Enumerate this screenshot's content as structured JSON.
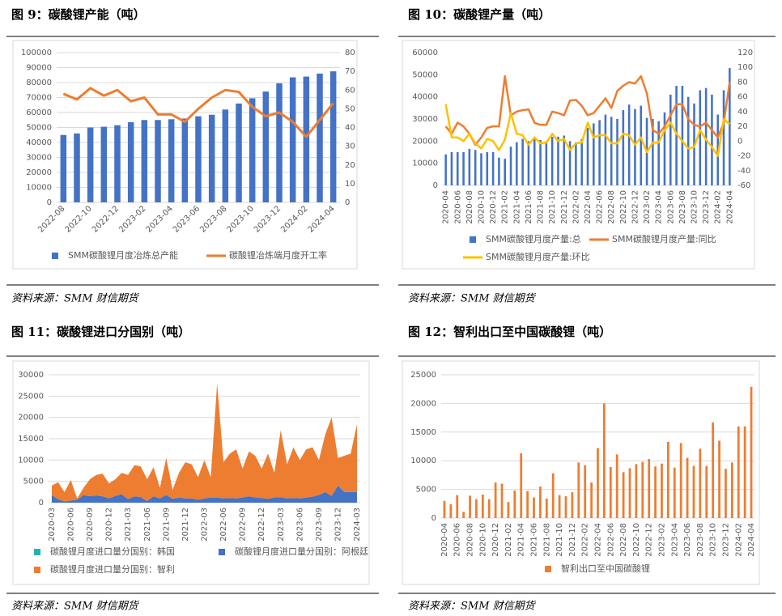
{
  "chart_data": [
    {
      "type": "combo",
      "title": "图 9：碳酸锂产能（吨）",
      "source": "资料来源：SMM  财信期货",
      "categories": [
        "2022-08",
        null,
        "2022-10",
        null,
        "2022-12",
        null,
        "2023-02",
        null,
        "2023-04",
        null,
        "2023-06",
        null,
        "2023-08",
        null,
        "2023-10",
        null,
        "2023-12",
        null,
        "2024-02",
        null,
        "2024-04"
      ],
      "series": [
        {
          "name": "SMM碳酸锂月度冶炼总产能",
          "type": "bar",
          "color": "#4472c4",
          "values": [
            45000,
            46000,
            50000,
            50500,
            51500,
            53500,
            55000,
            55000,
            55500,
            56000,
            57500,
            58500,
            62000,
            66000,
            69500,
            74000,
            79500,
            83500,
            84000,
            86000,
            87500
          ]
        },
        {
          "name": "碳酸锂冶炼端月度开工率",
          "type": "line",
          "axis": "y2",
          "color": "#ed7d31",
          "values": [
            58,
            55,
            61,
            57,
            60,
            54,
            56,
            47,
            47,
            43,
            50,
            56,
            60,
            59,
            51,
            46,
            48,
            43,
            35,
            44,
            53
          ]
        }
      ],
      "ylim": [
        0,
        100000
      ],
      "yticks": [
        0,
        10000,
        20000,
        30000,
        40000,
        50000,
        60000,
        70000,
        80000,
        90000,
        100000
      ],
      "y2lim": [
        0,
        80
      ],
      "y2ticks": [
        0,
        10,
        20,
        30,
        40,
        50,
        60,
        70,
        80
      ],
      "grid": true,
      "legend": "bottom"
    },
    {
      "type": "combo",
      "title": "图 10：碳酸锂产量（吨）",
      "source": "资料来源：SMM  财信期货",
      "categories": [
        "2020-04",
        null,
        "2020-06",
        null,
        "2020-08",
        null,
        "2020-10",
        null,
        "2020-12",
        null,
        "2021-02",
        null,
        "2021-04",
        null,
        "2021-06",
        null,
        "2021-08",
        null,
        "2021-10",
        null,
        "2021-12",
        null,
        "2022-02",
        null,
        "2022-04",
        null,
        "2022-06",
        null,
        "2022-08",
        null,
        "2022-10",
        null,
        "2022-12",
        null,
        "2023-02",
        null,
        "2023-04",
        null,
        "2023-06",
        null,
        "2023-08",
        null,
        "2023-10",
        null,
        "2023-12",
        null,
        "2024-02",
        null,
        "2024-04"
      ],
      "series": [
        {
          "name": "SMM碳酸锂月度产量:总",
          "type": "bar",
          "color": "#4472c4",
          "values": [
            14000,
            15000,
            15000,
            15000,
            16500,
            16000,
            14500,
            15000,
            15000,
            12500,
            12000,
            17500,
            19500,
            21000,
            20000,
            21000,
            20500,
            20000,
            22000,
            22000,
            22500,
            20000,
            19500,
            21000,
            26000,
            28000,
            29500,
            32000,
            31000,
            30000,
            34000,
            36500,
            34500,
            36000,
            30500,
            30000,
            29000,
            33000,
            41000,
            45000,
            45000,
            40000,
            37000,
            43000,
            44000,
            41000,
            32000,
            43000,
            53000
          ]
        },
        {
          "name": "SMM碳酸锂月度产量:同比",
          "type": "line",
          "axis": "y2",
          "color": "#ed7d31",
          "values": [
            20,
            10,
            25,
            20,
            10,
            -5,
            5,
            18,
            20,
            20,
            88,
            35,
            40,
            42,
            43,
            25,
            22,
            22,
            40,
            38,
            35,
            55,
            56,
            48,
            35,
            38,
            48,
            58,
            45,
            68,
            75,
            80,
            78,
            88,
            65,
            15,
            10,
            20,
            35,
            50,
            50,
            30,
            22,
            20,
            25,
            15,
            5,
            25,
            80
          ]
        },
        {
          "name": "SMM碳酸锂月度产量:环比",
          "type": "line",
          "axis": "y2",
          "color": "#ffc000",
          "values": [
            50,
            5,
            5,
            0,
            10,
            -3,
            -10,
            3,
            0,
            -12,
            2,
            38,
            10,
            8,
            -5,
            5,
            -3,
            -2,
            10,
            0,
            3,
            -12,
            -3,
            -2,
            25,
            5,
            8,
            8,
            -3,
            -3,
            10,
            8,
            -5,
            5,
            -15,
            -2,
            -2,
            15,
            25,
            10,
            0,
            -10,
            -8,
            15,
            2,
            -8,
            -20,
            30,
            23
          ]
        }
      ],
      "ylim": [
        0,
        60000
      ],
      "yticks": [
        0,
        10000,
        20000,
        30000,
        40000,
        50000,
        60000
      ],
      "y2lim": [
        -60,
        120
      ],
      "y2ticks": [
        -60,
        -40,
        -20,
        0,
        20,
        40,
        60,
        80,
        100,
        120
      ],
      "grid": false,
      "legend": "bottom"
    },
    {
      "type": "area",
      "stacked": true,
      "title": "图 11：碳酸锂进口分国别（吨）",
      "source": "资料来源：SMM  财信期货",
      "categories": [
        "2020-03",
        null,
        null,
        "2020-06",
        null,
        null,
        "2020-09",
        null,
        null,
        "2020-12",
        null,
        null,
        "2021-03",
        null,
        null,
        "2021-06",
        null,
        null,
        "2021-09",
        null,
        null,
        "2021-12",
        null,
        null,
        "2022-03",
        null,
        null,
        "2022-06",
        null,
        null,
        "2022-09",
        null,
        null,
        "2022-12",
        null,
        null,
        "2023-03",
        null,
        null,
        "2023-06",
        null,
        null,
        "2023-09",
        null,
        null,
        "2023-12",
        null,
        null,
        "2024-03"
      ],
      "series": [
        {
          "name": "碳酸锂月度进口量分国别：韩国",
          "color": "#1fb5ad",
          "values": [
            0,
            0,
            0,
            0,
            0,
            0,
            0,
            0,
            0,
            0,
            0,
            0,
            0,
            0,
            0,
            0,
            0,
            0,
            0,
            0,
            0,
            0,
            0,
            0,
            0,
            0,
            0,
            0,
            0,
            0,
            0,
            0,
            0,
            0,
            0,
            0,
            0,
            0,
            0,
            0,
            0,
            0,
            0,
            0,
            0,
            0,
            0,
            0,
            0
          ]
        },
        {
          "name": "碳酸锂月度进口量分国别：阿根廷",
          "color": "#4472c4",
          "values": [
            1800,
            800,
            300,
            500,
            700,
            1800,
            1500,
            1700,
            1500,
            1000,
            1600,
            2000,
            800,
            1500,
            1300,
            400,
            1500,
            1000,
            1800,
            900,
            1200,
            1000,
            1000,
            700,
            1000,
            1200,
            1200,
            1000,
            1100,
            1000,
            1200,
            1500,
            1200,
            1100,
            900,
            1200,
            1300,
            1000,
            1100,
            1000,
            1200,
            1400,
            1800,
            2500,
            1600,
            4000,
            2500,
            2500,
            2500
          ]
        },
        {
          "name": "碳酸锂月度进口量分国别：智利",
          "color": "#ed7d31",
          "values": [
            2200,
            4000,
            2200,
            4800,
            300,
            1700,
            4000,
            4800,
            5300,
            3500,
            3900,
            5000,
            5700,
            7300,
            7200,
            5100,
            6800,
            2500,
            8700,
            2100,
            5800,
            8500,
            8000,
            5300,
            9000,
            4800,
            26800,
            8500,
            10400,
            11500,
            6800,
            10500,
            9800,
            6900,
            10600,
            5800,
            15700,
            8000,
            11900,
            9000,
            11300,
            11600,
            8200,
            13500,
            18400,
            6500,
            8500,
            9000,
            16000
          ]
        }
      ],
      "ylim": [
        0,
        30000
      ],
      "yticks": [
        0,
        5000,
        10000,
        15000,
        20000,
        25000,
        30000
      ],
      "grid": true,
      "legend": "bottom"
    },
    {
      "type": "bar",
      "title": "图 12：智利出口至中国碳酸锂（吨）",
      "source": "资料来源：SMM  财信期货",
      "categories": [
        "2020-04",
        null,
        "2020-06",
        null,
        "2020-08",
        null,
        "2020-10",
        null,
        "2020-12",
        null,
        "2021-02",
        null,
        "2021-04",
        null,
        "2021-06",
        null,
        "2021-08",
        null,
        "2021-10",
        null,
        "2021-12",
        null,
        "2022-02",
        null,
        "2022-04",
        null,
        "2022-06",
        null,
        "2022-08",
        null,
        "2022-10",
        null,
        "2022-12",
        null,
        "2023-02",
        null,
        "2023-04",
        null,
        "2023-06",
        null,
        "2023-08",
        null,
        "2023-10",
        null,
        "2023-12",
        null,
        "2024-02",
        null,
        "2024-04"
      ],
      "series": [
        {
          "name": "智利出口至中国碳酸锂",
          "type": "bar",
          "color": "#ed7d31",
          "values": [
            3000,
            2400,
            4000,
            1100,
            3900,
            3300,
            4100,
            3300,
            6200,
            6000,
            2800,
            4800,
            11300,
            4700,
            3600,
            5500,
            3400,
            7800,
            4000,
            3800,
            4500,
            9700,
            9200,
            6200,
            12200,
            20000,
            8900,
            11100,
            8000,
            8700,
            9400,
            9800,
            10300,
            9000,
            9500,
            13300,
            8800,
            13100,
            10500,
            9100,
            12100,
            9100,
            16700,
            13500,
            8600,
            9700,
            16000,
            16000,
            22900
          ]
        }
      ],
      "ylim": [
        0,
        25000
      ],
      "yticks": [
        0,
        5000,
        10000,
        15000,
        20000,
        25000
      ],
      "grid": true,
      "legend": "bottom"
    }
  ]
}
